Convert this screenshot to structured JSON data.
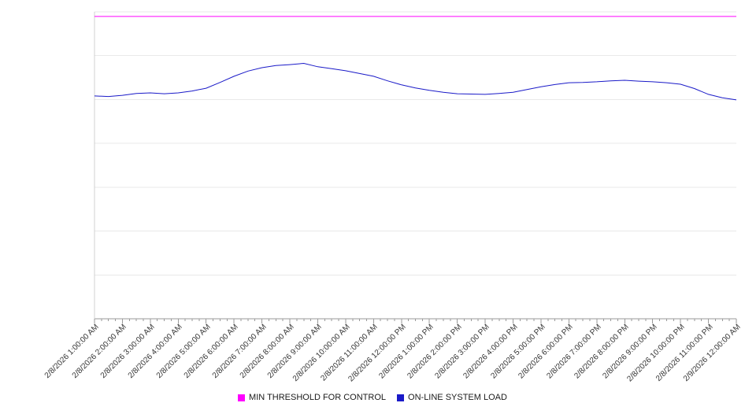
{
  "chart_data": {
    "type": "line",
    "title": "",
    "xlabel": "",
    "ylabel": "",
    "legend_position": "bottom-center",
    "grid": true,
    "y_axis": {
      "tick_labels": [],
      "range": [
        0,
        100
      ],
      "gridline_count": 8
    },
    "x_tick_labels": [
      "2/8/2026 1:00:00 AM",
      "2/8/2026 2:00:00 AM",
      "2/8/2026 3:00:00 AM",
      "2/8/2026 4:00:00 AM",
      "2/8/2026 5:00:00 AM",
      "2/8/2026 6:00:00 AM",
      "2/8/2026 7:00:00 AM",
      "2/8/2026 8:00:00 AM",
      "2/8/2026 9:00:00 AM",
      "2/8/2026 10:00:00 AM",
      "2/8/2026 11:00:00 AM",
      "2/8/2026 12:00:00 PM",
      "2/8/2026 1:00:00 PM",
      "2/8/2026 2:00:00 PM",
      "2/8/2026 3:00:00 PM",
      "2/8/2026 4:00:00 PM",
      "2/8/2026 5:00:00 PM",
      "2/8/2026 6:00:00 PM",
      "2/8/2026 7:00:00 PM",
      "2/8/2026 8:00:00 PM",
      "2/8/2026 9:00:00 PM",
      "2/8/2026 10:00:00 PM",
      "2/8/2026 11:00:00 PM",
      "2/9/2026 12:00:00 AM"
    ],
    "series": [
      {
        "name": "MIN THRESHOLD FOR CONTROL",
        "color": "#ff00ff",
        "values": [
          98.5,
          98.5
        ]
      },
      {
        "name": "ON-LINE SYSTEM LOAD",
        "color": "#1a1ac8",
        "values": [
          72.6,
          72.4,
          72.8,
          73.4,
          73.6,
          73.3,
          73.6,
          74.2,
          75.1,
          77.0,
          79.0,
          80.7,
          81.8,
          82.5,
          82.8,
          83.2,
          82.1,
          81.5,
          80.8,
          79.9,
          79.0,
          77.5,
          76.2,
          75.2,
          74.4,
          73.8,
          73.3,
          73.2,
          73.1,
          73.4,
          73.8,
          74.7,
          75.6,
          76.3,
          76.9,
          77.0,
          77.2,
          77.5,
          77.7,
          77.4,
          77.2,
          76.9,
          76.4,
          75.0,
          73.1,
          72.0,
          71.3
        ]
      }
    ]
  }
}
